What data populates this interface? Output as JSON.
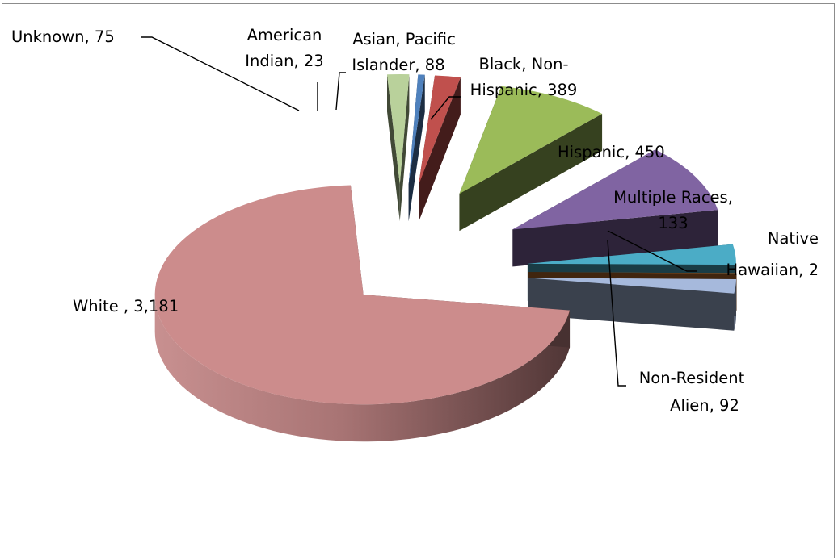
{
  "chart_data": {
    "type": "pie",
    "style": "exploded 3D pie",
    "categories": [
      "White",
      "Unknown",
      "American Indian",
      "Asian, Pacific Islander",
      "Black, Non-Hispanic",
      "Hispanic",
      "Multiple Races",
      "Native Hawaiian",
      "Non-Resident Alien"
    ],
    "values": [
      3181,
      75,
      23,
      88,
      389,
      450,
      133,
      2,
      92
    ],
    "colors": [
      "#cc8c8c",
      "#b9d19b",
      "#4f81bd",
      "#c0504d",
      "#9bbb59",
      "#8064a2",
      "#4bacc6",
      "#b86a2a",
      "#a6b9dc"
    ],
    "data_labels": {
      "white": "White , 3,181",
      "unknown": "Unknown, 75",
      "american_indian": [
        "American",
        "Indian, 23"
      ],
      "asian": [
        "Asian, Pacific",
        "Islander, 88"
      ],
      "black": [
        "Black, Non-",
        "Hispanic, 389"
      ],
      "hispanic": "Hispanic, 450",
      "multiple": [
        "Multiple Races,",
        "133"
      ],
      "hawaiian": [
        "Native",
        "Hawaiian, 2"
      ],
      "alien": [
        "Non-Resident",
        "Alien, 92"
      ]
    }
  }
}
